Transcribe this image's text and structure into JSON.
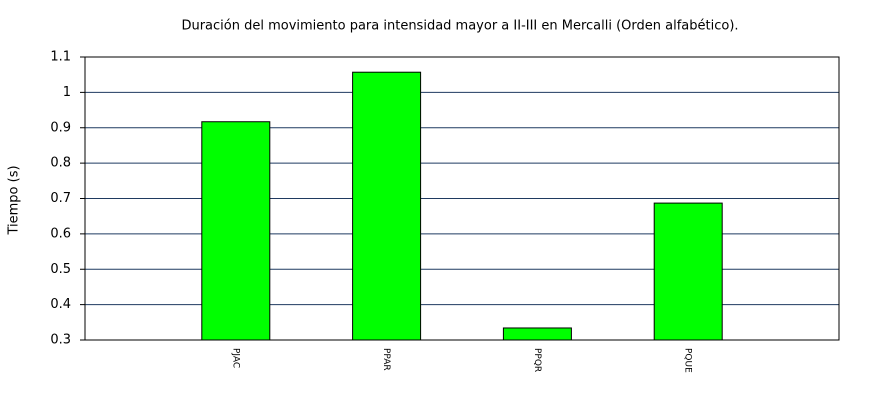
{
  "chart_data": {
    "type": "bar",
    "title": "Duración del movimiento para intensidad mayor a II-III en Mercalli (Orden alfabético).",
    "y_label": "Tiempo (s)",
    "categories": [
      "PJAC",
      "PPAR",
      "PPQR",
      "PQUE"
    ],
    "values": [
      0.917,
      1.057,
      0.334,
      0.687
    ],
    "color": "#00ff00",
    "ylim": [
      0.3,
      1.1
    ],
    "yticks": [
      0.3,
      0.4,
      0.5,
      0.6,
      0.7,
      0.8,
      0.9,
      1,
      1.1
    ],
    "grid": true
  }
}
